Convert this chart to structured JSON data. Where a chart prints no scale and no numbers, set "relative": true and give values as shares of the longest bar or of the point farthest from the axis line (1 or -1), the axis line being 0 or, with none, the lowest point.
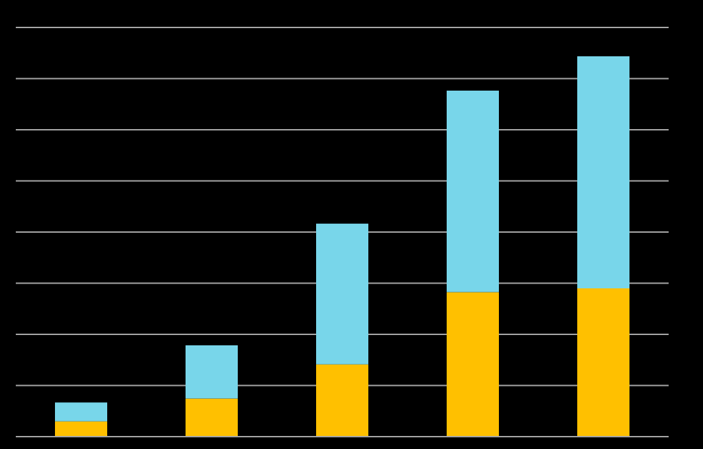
{
  "chart_data": {
    "type": "bar",
    "stacked": true,
    "relative": true,
    "grid": "y",
    "categories": [
      null,
      null,
      null,
      null,
      null
    ],
    "series": [
      {
        "color": "#ffc000",
        "values": [
          0.04,
          0.1,
          0.19,
          0.38,
          0.39
        ]
      },
      {
        "color": "#78d6ea",
        "values": [
          0.05,
          0.14,
          0.37,
          0.53,
          0.61
        ]
      }
    ]
  }
}
